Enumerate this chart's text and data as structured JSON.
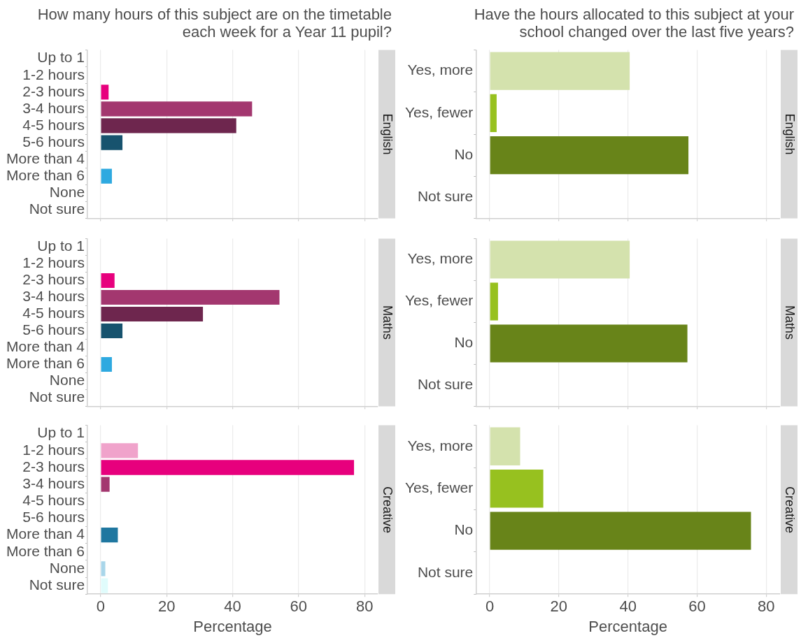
{
  "chart_data": [
    {
      "type": "bar",
      "orientation": "horizontal",
      "title": "How many hours of this subject are on the timetable each week for a Year 11 pupil?",
      "categories": [
        "Up to 1",
        "1-2 hours",
        "2-3 hours",
        "3-4 hours",
        "4-5 hours",
        "5-6 hours",
        "More than 4",
        "More than 6",
        "None",
        "Not sure"
      ],
      "values": [
        null,
        0,
        2.4,
        45.9,
        41.1,
        6.6,
        0,
        3.4,
        0,
        null
      ],
      "colors": [
        "#fcc5f0",
        "#f0a3cb",
        "#e7007d",
        "#a3376f",
        "#6e264e",
        "#17536e",
        "#1f77a0",
        "#2ea9e0",
        "#a9d6ea",
        "#e0fcfc"
      ],
      "xlim": [
        -4,
        84
      ],
      "xticks": [
        0,
        20,
        40,
        60,
        80
      ],
      "grid": "x",
      "tick_labels": "y",
      "legend": false,
      "annotations": [
        "English"
      ]
    },
    {
      "type": "bar",
      "orientation": "horizontal",
      "title": "Have the hours allocated to this subject at your school changed over the last five years?",
      "categories": [
        "Yes, more",
        "Yes, fewer",
        "No",
        "Not sure"
      ],
      "values": [
        40.5,
        2.0,
        57.5,
        0
      ],
      "colors": [
        "#d4e2ad",
        "#97c11f",
        "#688419",
        "#688419"
      ],
      "xlim": [
        -4,
        84
      ],
      "xticks": [
        0,
        20,
        40,
        60,
        80
      ],
      "grid": "x",
      "tick_labels": "y",
      "legend": false,
      "annotations": [
        "English"
      ]
    },
    {
      "type": "bar",
      "orientation": "horizontal",
      "categories": [
        "Up to 1",
        "1-2 hours",
        "2-3 hours",
        "3-4 hours",
        "4-5 hours",
        "5-6 hours",
        "More than 4",
        "More than 6",
        "None",
        "Not sure"
      ],
      "values": [
        null,
        0,
        4.2,
        54.2,
        31.0,
        6.6,
        0,
        3.4,
        0,
        null
      ],
      "colors": [
        "#fcc5f0",
        "#f0a3cb",
        "#e7007d",
        "#a3376f",
        "#6e264e",
        "#17536e",
        "#1f77a0",
        "#2ea9e0",
        "#a9d6ea",
        "#e0fcfc"
      ],
      "xlim": [
        -4,
        84
      ],
      "xticks": [
        0,
        20,
        40,
        60,
        80
      ],
      "grid": "x",
      "tick_labels": "y",
      "legend": false,
      "annotations": [
        "Maths"
      ]
    },
    {
      "type": "bar",
      "orientation": "horizontal",
      "categories": [
        "Yes, more",
        "Yes, fewer",
        "No",
        "Not sure"
      ],
      "values": [
        40.5,
        2.4,
        57.2,
        0
      ],
      "colors": [
        "#d4e2ad",
        "#97c11f",
        "#688419",
        "#688419"
      ],
      "xlim": [
        -4,
        84
      ],
      "xticks": [
        0,
        20,
        40,
        60,
        80
      ],
      "grid": "x",
      "tick_labels": "y",
      "legend": false,
      "annotations": [
        "Maths"
      ]
    },
    {
      "type": "bar",
      "orientation": "horizontal",
      "xlabel": "Percentage",
      "categories": [
        "Up to 1",
        "1-2 hours",
        "2-3 hours",
        "3-4 hours",
        "4-5 hours",
        "5-6 hours",
        "More than 4",
        "More than 6",
        "None",
        "Not sure"
      ],
      "values": [
        null,
        11.3,
        76.8,
        2.7,
        0,
        0,
        5.2,
        0,
        1.4,
        2.2
      ],
      "colors": [
        "#fcc5f0",
        "#f0a3cb",
        "#e7007d",
        "#a3376f",
        "#6e264e",
        "#17536e",
        "#1f77a0",
        "#2ea9e0",
        "#a9d6ea",
        "#e0fcfc"
      ],
      "xlim": [
        -4,
        84
      ],
      "xticks": [
        0,
        20,
        40,
        60,
        80
      ],
      "grid": "x",
      "legend": false,
      "annotations": [
        "Creative"
      ]
    },
    {
      "type": "bar",
      "orientation": "horizontal",
      "xlabel": "Percentage",
      "categories": [
        "Yes, more",
        "Yes, fewer",
        "No",
        "Not sure"
      ],
      "values": [
        8.8,
        15.5,
        75.6,
        0
      ],
      "colors": [
        "#d4e2ad",
        "#97c11f",
        "#688419",
        "#688419"
      ],
      "xlim": [
        -4,
        84
      ],
      "xticks": [
        0,
        20,
        40,
        60,
        80
      ],
      "grid": "x",
      "legend": false,
      "annotations": [
        "Creative"
      ]
    }
  ]
}
